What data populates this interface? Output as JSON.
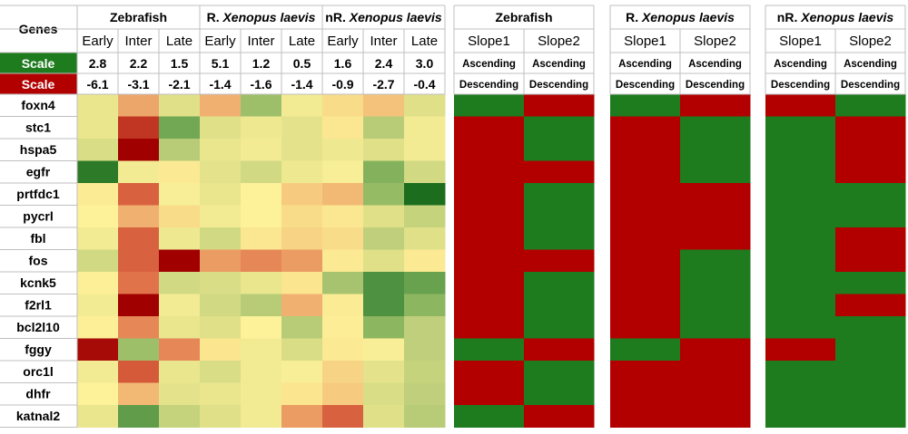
{
  "chart_data": [
    {
      "type": "heatmap",
      "name": "expression_heatmap",
      "row_header": "Genes",
      "groups": [
        "Zebrafish",
        "R. Xenopus laevis",
        "nR. Xenopus laevis"
      ],
      "group_prefixes": [
        "",
        "R. ",
        "nR. "
      ],
      "group_species": [
        "Zebrafish",
        "Xenopus laevis",
        "Xenopus laevis"
      ],
      "columns": [
        "Early",
        "Inter",
        "Late",
        "Early",
        "Inter",
        "Late",
        "Early",
        "Inter",
        "Late"
      ],
      "scale_rows": [
        {
          "label": "Scale",
          "color": "#1e7b1e",
          "meaning": "ascending",
          "values": [
            "2.8",
            "2.2",
            "1.5",
            "5.1",
            "1.2",
            "0.5",
            "1.6",
            "2.4",
            "3.0"
          ]
        },
        {
          "label": "Scale",
          "color": "#b20000",
          "meaning": "descending",
          "values": [
            "-6.1",
            "-3.1",
            "-2.1",
            "-1.4",
            "-1.6",
            "-1.4",
            "-0.9",
            "-2.7",
            "-0.4"
          ]
        }
      ],
      "rows": [
        "foxn4",
        "stc1",
        "hspa5",
        "egfr",
        "prtfdc1",
        "pycrl",
        "fbl",
        "fos",
        "kcnk5",
        "f2rl1",
        "bcl2l10",
        "fggy",
        "orc1l",
        "dhfr",
        "katnal2"
      ],
      "color_scale": [
        "#a00000",
        "#c8402a",
        "#e0734a",
        "#f0b070",
        "#fbe58f",
        "#fdf19a",
        "#dfe088",
        "#b8cc78",
        "#84b25c",
        "#4e9140",
        "#1c6e1e"
      ],
      "color_scale_range": [
        -3,
        3
      ],
      "values": [
        [
          0.4,
          -1.3,
          0.6,
          -1.2,
          1.5,
          0.2,
          -0.7,
          -1.0,
          0.6
        ],
        [
          0.4,
          -2.5,
          2.0,
          0.6,
          0.3,
          0.5,
          -0.5,
          1.2,
          0.2
        ],
        [
          0.7,
          -3.0,
          1.2,
          0.4,
          0.2,
          0.5,
          0.3,
          0.6,
          0.2
        ],
        [
          2.8,
          0.2,
          -0.4,
          0.5,
          0.8,
          0.3,
          0.1,
          1.8,
          0.8
        ],
        [
          -0.3,
          -2.0,
          0.1,
          0.4,
          0.0,
          -0.9,
          -1.1,
          1.6,
          3.0
        ],
        [
          0.0,
          -1.2,
          -0.7,
          0.2,
          0.0,
          -0.7,
          -0.5,
          0.6,
          1.0
        ],
        [
          0.2,
          -2.0,
          0.3,
          0.8,
          -0.5,
          -0.8,
          -0.7,
          1.1,
          0.6
        ],
        [
          0.8,
          -2.0,
          -6.1,
          -1.4,
          -1.6,
          -1.4,
          -0.4,
          0.6,
          -0.4
        ],
        [
          -0.1,
          -1.8,
          0.8,
          0.7,
          0.4,
          -0.6,
          1.4,
          2.4,
          2.1
        ],
        [
          0.2,
          -3.1,
          0.2,
          0.8,
          1.2,
          -1.2,
          -0.3,
          2.4,
          1.7
        ],
        [
          -0.1,
          -1.6,
          0.4,
          0.6,
          0.0,
          1.2,
          -0.2,
          1.7,
          1.1
        ],
        [
          -2.9,
          1.5,
          -1.6,
          -0.6,
          0.2,
          0.7,
          -0.4,
          0.1,
          1.1
        ],
        [
          0.2,
          -2.1,
          0.4,
          0.7,
          0.2,
          0.1,
          -0.8,
          0.5,
          1.0
        ],
        [
          0.0,
          -1.1,
          0.5,
          0.4,
          0.2,
          -0.6,
          -0.9,
          0.7,
          1.1
        ],
        [
          0.4,
          2.2,
          1.0,
          0.6,
          0.2,
          -1.4,
          -2.0,
          0.6,
          1.2
        ]
      ]
    },
    {
      "type": "table",
      "name": "slope_direction_table",
      "groups": [
        "Zebrafish",
        "R. Xenopus laevis",
        "nR. Xenopus laevis"
      ],
      "group_prefixes": [
        "",
        "R. ",
        "nR. "
      ],
      "group_species": [
        "Zebrafish",
        "Xenopus laevis",
        "Xenopus laevis"
      ],
      "columns": [
        "Slope1",
        "Slope2"
      ],
      "scale_rows": [
        {
          "values": [
            "Ascending",
            "Ascending",
            "Ascending",
            "Ascending",
            "Ascending",
            "Ascending"
          ]
        },
        {
          "values": [
            "Descending",
            "Descending",
            "Descending",
            "Descending",
            "Descending",
            "Descending"
          ]
        }
      ],
      "colors": {
        "ascending": "#1e7b1e",
        "descending": "#b20000"
      },
      "rows": [
        "foxn4",
        "stc1",
        "hspa5",
        "egfr",
        "prtfdc1",
        "pycrl",
        "fbl",
        "fos",
        "kcnk5",
        "f2rl1",
        "bcl2l10",
        "fggy",
        "orc1l",
        "dhfr",
        "katnal2"
      ],
      "cells": [
        [
          "A",
          "D",
          "A",
          "D",
          "D",
          "A"
        ],
        [
          "D",
          "A",
          "D",
          "A",
          "A",
          "D"
        ],
        [
          "D",
          "A",
          "D",
          "A",
          "A",
          "D"
        ],
        [
          "D",
          "D",
          "D",
          "A",
          "A",
          "D"
        ],
        [
          "D",
          "A",
          "D",
          "D",
          "A",
          "A"
        ],
        [
          "D",
          "A",
          "D",
          "D",
          "A",
          "A"
        ],
        [
          "D",
          "A",
          "D",
          "D",
          "A",
          "D"
        ],
        [
          "D",
          "D",
          "D",
          "A",
          "A",
          "D"
        ],
        [
          "D",
          "A",
          "D",
          "A",
          "A",
          "A"
        ],
        [
          "D",
          "A",
          "D",
          "A",
          "A",
          "D"
        ],
        [
          "D",
          "A",
          "D",
          "A",
          "A",
          "A"
        ],
        [
          "A",
          "D",
          "A",
          "D",
          "D",
          "A"
        ],
        [
          "D",
          "A",
          "D",
          "D",
          "A",
          "A"
        ],
        [
          "D",
          "A",
          "D",
          "D",
          "A",
          "A"
        ],
        [
          "A",
          "D",
          "D",
          "D",
          "A",
          "A"
        ]
      ]
    }
  ]
}
